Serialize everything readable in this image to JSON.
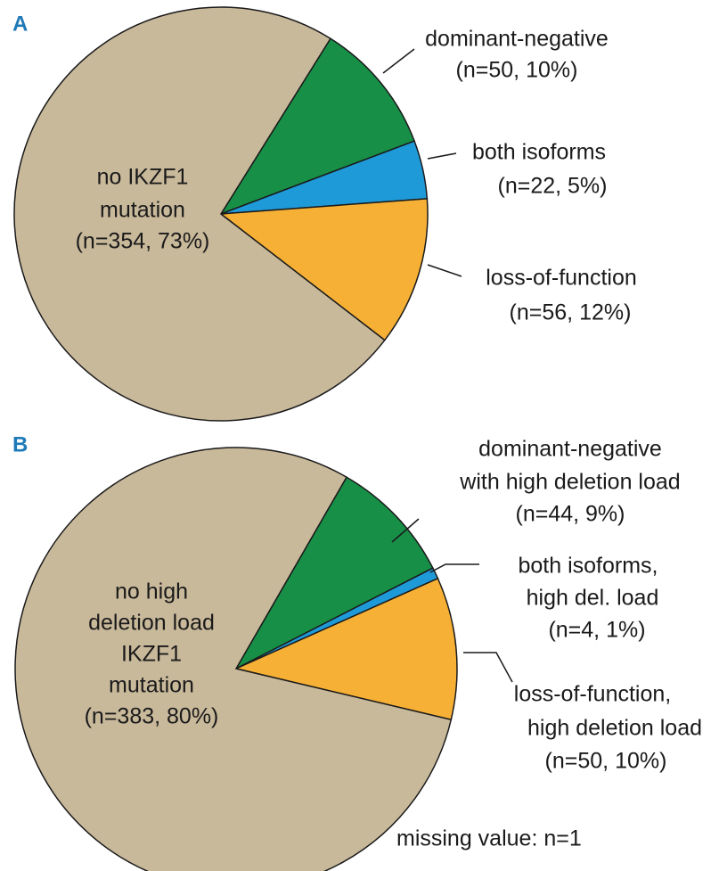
{
  "chart_data": [
    {
      "type": "pie",
      "panel": "A",
      "categories": [
        [
          "dominant-negative"
        ],
        [
          "both isoforms"
        ],
        [
          "loss-of-function"
        ],
        [
          "no IKZF1",
          "mutation"
        ]
      ],
      "values": [
        50,
        22,
        56,
        354
      ],
      "value_labels": [
        "(n=50, 10%)",
        "(n=22, 5%)",
        "(n=56, 12%)",
        "(n=354, 73%)"
      ],
      "colors": [
        "#178f47",
        "#1f9ad8",
        "#f6b035",
        "#c9b99b"
      ]
    },
    {
      "type": "pie",
      "panel": "B",
      "categories": [
        [
          "dominant-negative",
          "with high deletion load"
        ],
        [
          "both isoforms,",
          "high del. load"
        ],
        [
          "loss-of-function,",
          "high deletion load"
        ],
        [
          "no high",
          "deletion load",
          "IKZF1",
          "mutation"
        ]
      ],
      "values": [
        44,
        4,
        50,
        383
      ],
      "value_labels": [
        "(n=44, 9%)",
        "(n=4, 1%)",
        "(n=50, 10%)",
        "(n=383, 80%)"
      ],
      "colors": [
        "#178f47",
        "#1f9ad8",
        "#f6b035",
        "#c9b99b"
      ],
      "note": "missing value: n=1"
    }
  ]
}
